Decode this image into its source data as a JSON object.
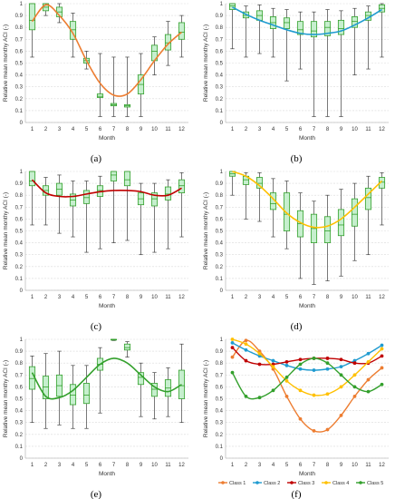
{
  "figure": {
    "panels": [
      {
        "id": "a",
        "label": "(a)",
        "type": "box",
        "xlabel": "Month",
        "ylabel": "Relative mean monthy ACI (-)",
        "ylim": [
          0,
          1
        ],
        "yticks": [
          0,
          0.1,
          0.2,
          0.3,
          0.4,
          0.5,
          0.6,
          0.7,
          0.8,
          0.9,
          1
        ],
        "months": [
          1,
          2,
          3,
          4,
          5,
          6,
          7,
          8,
          9,
          10,
          11,
          12
        ],
        "boxes": [
          {
            "min": 0.55,
            "q1": 0.78,
            "med": 0.86,
            "q3": 1.0,
            "max": 1.0
          },
          {
            "min": 0.9,
            "q1": 0.94,
            "med": 0.97,
            "q3": 1.0,
            "max": 1.0
          },
          {
            "min": 0.84,
            "q1": 0.89,
            "med": 0.93,
            "q3": 0.97,
            "max": 1.0
          },
          {
            "min": 0.55,
            "q1": 0.7,
            "med": 0.78,
            "q3": 0.85,
            "max": 0.92
          },
          {
            "min": 0.45,
            "q1": 0.5,
            "med": 0.52,
            "q3": 0.54,
            "max": 0.6
          },
          {
            "min": 0.05,
            "q1": 0.21,
            "med": 0.22,
            "q3": 0.24,
            "max": 0.58
          },
          {
            "min": 0.05,
            "q1": 0.14,
            "med": 0.15,
            "q3": 0.16,
            "max": 0.55
          },
          {
            "min": 0.05,
            "q1": 0.13,
            "med": 0.14,
            "q3": 0.15,
            "max": 0.55
          },
          {
            "min": 0.05,
            "q1": 0.24,
            "med": 0.32,
            "q3": 0.4,
            "max": 0.58
          },
          {
            "min": 0.4,
            "q1": 0.52,
            "med": 0.6,
            "q3": 0.65,
            "max": 0.72
          },
          {
            "min": 0.48,
            "q1": 0.61,
            "med": 0.67,
            "q3": 0.74,
            "max": 0.85
          },
          {
            "min": 0.55,
            "q1": 0.7,
            "med": 0.76,
            "q3": 0.84,
            "max": 0.9
          }
        ],
        "fit": [
          0.85,
          0.99,
          0.9,
          0.75,
          0.52,
          0.33,
          0.23,
          0.24,
          0.36,
          0.52,
          0.66,
          0.76
        ],
        "fit_color": "#ed7d31"
      },
      {
        "id": "b",
        "label": "(b)",
        "type": "box",
        "xlabel": "Month",
        "ylabel": "Relative mean monthy ACI (-)",
        "ylim": [
          0,
          1
        ],
        "yticks": [
          0,
          0.1,
          0.2,
          0.3,
          0.4,
          0.5,
          0.6,
          0.7,
          0.8,
          0.9,
          1
        ],
        "months": [
          1,
          2,
          3,
          4,
          5,
          6,
          7,
          8,
          9,
          10,
          11,
          12
        ],
        "boxes": [
          {
            "min": 0.62,
            "q1": 0.95,
            "med": 0.98,
            "q3": 1.0,
            "max": 1.0
          },
          {
            "min": 0.55,
            "q1": 0.88,
            "med": 0.9,
            "q3": 0.93,
            "max": 0.98
          },
          {
            "min": 0.58,
            "q1": 0.86,
            "med": 0.9,
            "q3": 0.94,
            "max": 0.99
          },
          {
            "min": 0.55,
            "q1": 0.79,
            "med": 0.84,
            "q3": 0.89,
            "max": 0.96
          },
          {
            "min": 0.35,
            "q1": 0.79,
            "med": 0.84,
            "q3": 0.88,
            "max": 0.95
          },
          {
            "min": 0.45,
            "q1": 0.74,
            "med": 0.78,
            "q3": 0.85,
            "max": 0.93
          },
          {
            "min": 0.05,
            "q1": 0.72,
            "med": 0.77,
            "q3": 0.85,
            "max": 0.93
          },
          {
            "min": 0.05,
            "q1": 0.73,
            "med": 0.8,
            "q3": 0.85,
            "max": 0.95
          },
          {
            "min": 0.05,
            "q1": 0.74,
            "med": 0.79,
            "q3": 0.86,
            "max": 0.94
          },
          {
            "min": 0.4,
            "q1": 0.8,
            "med": 0.85,
            "q3": 0.89,
            "max": 0.96
          },
          {
            "min": 0.45,
            "q1": 0.86,
            "med": 0.9,
            "q3": 0.93,
            "max": 0.98
          },
          {
            "min": 0.55,
            "q1": 0.93,
            "med": 0.96,
            "q3": 0.99,
            "max": 1.0
          }
        ],
        "fit": [
          0.97,
          0.91,
          0.86,
          0.82,
          0.78,
          0.75,
          0.74,
          0.75,
          0.77,
          0.82,
          0.88,
          0.95
        ],
        "fit_color": "#1f9bd0"
      },
      {
        "id": "c",
        "label": "(c)",
        "type": "box",
        "xlabel": "Month",
        "ylabel": "Relative mean monthy ACI (-)",
        "ylim": [
          0,
          1
        ],
        "yticks": [
          0,
          0.1,
          0.2,
          0.3,
          0.4,
          0.5,
          0.6,
          0.7,
          0.8,
          0.9,
          1
        ],
        "months": [
          1,
          2,
          3,
          4,
          5,
          6,
          7,
          8,
          9,
          10,
          11,
          12
        ],
        "boxes": [
          {
            "min": 0.55,
            "q1": 0.88,
            "med": 0.92,
            "q3": 1.0,
            "max": 1.0
          },
          {
            "min": 0.55,
            "q1": 0.8,
            "med": 0.84,
            "q3": 0.88,
            "max": 0.95
          },
          {
            "min": 0.48,
            "q1": 0.8,
            "med": 0.85,
            "q3": 0.9,
            "max": 0.97
          },
          {
            "min": 0.45,
            "q1": 0.71,
            "med": 0.76,
            "q3": 0.81,
            "max": 0.92
          },
          {
            "min": 0.32,
            "q1": 0.73,
            "med": 0.78,
            "q3": 0.84,
            "max": 0.92
          },
          {
            "min": 0.35,
            "q1": 0.79,
            "med": 0.84,
            "q3": 0.88,
            "max": 0.96
          },
          {
            "min": 0.4,
            "q1": 0.92,
            "med": 0.97,
            "q3": 1.0,
            "max": 1.0
          },
          {
            "min": 0.42,
            "q1": 0.88,
            "med": 0.93,
            "q3": 1.0,
            "max": 1.0
          },
          {
            "min": 0.3,
            "q1": 0.72,
            "med": 0.77,
            "q3": 0.82,
            "max": 0.9
          },
          {
            "min": 0.32,
            "q1": 0.71,
            "med": 0.77,
            "q3": 0.82,
            "max": 0.9
          },
          {
            "min": 0.35,
            "q1": 0.76,
            "med": 0.81,
            "q3": 0.87,
            "max": 0.93
          },
          {
            "min": 0.45,
            "q1": 0.82,
            "med": 0.88,
            "q3": 0.93,
            "max": 0.99
          }
        ],
        "fit": [
          0.93,
          0.82,
          0.79,
          0.79,
          0.81,
          0.83,
          0.84,
          0.84,
          0.83,
          0.8,
          0.8,
          0.86
        ],
        "fit_color": "#c00000"
      },
      {
        "id": "d",
        "label": "(d)",
        "type": "box",
        "xlabel": "Month",
        "ylabel": "Relative mean monthy ACI (-)",
        "ylim": [
          0,
          1
        ],
        "yticks": [
          0,
          0.1,
          0.2,
          0.3,
          0.4,
          0.5,
          0.6,
          0.7,
          0.8,
          0.9,
          1
        ],
        "months": [
          1,
          2,
          3,
          4,
          5,
          6,
          7,
          8,
          9,
          10,
          11,
          12
        ],
        "boxes": [
          {
            "min": 0.8,
            "q1": 0.96,
            "med": 0.98,
            "q3": 1.0,
            "max": 1.0
          },
          {
            "min": 0.6,
            "q1": 0.89,
            "med": 0.93,
            "q3": 0.96,
            "max": 0.99
          },
          {
            "min": 0.58,
            "q1": 0.86,
            "med": 0.9,
            "q3": 0.95,
            "max": 0.99
          },
          {
            "min": 0.45,
            "q1": 0.68,
            "med": 0.73,
            "q3": 0.82,
            "max": 0.94
          },
          {
            "min": 0.35,
            "q1": 0.5,
            "med": 0.64,
            "q3": 0.82,
            "max": 0.92
          },
          {
            "min": 0.1,
            "q1": 0.45,
            "med": 0.56,
            "q3": 0.67,
            "max": 0.82
          },
          {
            "min": 0.05,
            "q1": 0.4,
            "med": 0.52,
            "q3": 0.64,
            "max": 0.75
          },
          {
            "min": 0.08,
            "q1": 0.4,
            "med": 0.5,
            "q3": 0.62,
            "max": 0.8
          },
          {
            "min": 0.12,
            "q1": 0.46,
            "med": 0.55,
            "q3": 0.68,
            "max": 0.85
          },
          {
            "min": 0.25,
            "q1": 0.54,
            "med": 0.64,
            "q3": 0.77,
            "max": 0.9
          },
          {
            "min": 0.3,
            "q1": 0.68,
            "med": 0.78,
            "q3": 0.86,
            "max": 0.96
          },
          {
            "min": 0.55,
            "q1": 0.86,
            "med": 0.91,
            "q3": 0.95,
            "max": 0.99
          }
        ],
        "fit": [
          1.0,
          0.96,
          0.88,
          0.77,
          0.65,
          0.57,
          0.53,
          0.54,
          0.6,
          0.7,
          0.81,
          0.92
        ],
        "fit_color": "#ffc000"
      },
      {
        "id": "e",
        "label": "(e)",
        "type": "box",
        "xlabel": "Month",
        "ylabel": "Relative mean monthy ACI (-)",
        "ylim": [
          0,
          1
        ],
        "yticks": [
          0,
          0.1,
          0.2,
          0.3,
          0.4,
          0.5,
          0.6,
          0.7,
          0.8,
          0.9,
          1
        ],
        "months": [
          1,
          2,
          3,
          4,
          5,
          6,
          7,
          8,
          9,
          10,
          11,
          12
        ],
        "boxes": [
          {
            "min": 0.3,
            "q1": 0.58,
            "med": 0.67,
            "q3": 0.77,
            "max": 0.86
          },
          {
            "min": 0.25,
            "q1": 0.5,
            "med": 0.6,
            "q3": 0.69,
            "max": 0.88
          },
          {
            "min": 0.28,
            "q1": 0.52,
            "med": 0.61,
            "q3": 0.7,
            "max": 0.9
          },
          {
            "min": 0.25,
            "q1": 0.45,
            "med": 0.53,
            "q3": 0.62,
            "max": 0.78
          },
          {
            "min": 0.25,
            "q1": 0.46,
            "med": 0.53,
            "q3": 0.63,
            "max": 0.78
          },
          {
            "min": 0.38,
            "q1": 0.74,
            "med": 0.79,
            "q3": 0.84,
            "max": 0.93
          },
          {
            "min": 0.99,
            "q1": 0.995,
            "med": 0.998,
            "q3": 1.0,
            "max": 1.0
          },
          {
            "min": 0.85,
            "q1": 0.91,
            "med": 0.93,
            "q3": 0.96,
            "max": 0.98
          },
          {
            "min": 0.35,
            "q1": 0.62,
            "med": 0.68,
            "q3": 0.72,
            "max": 0.8
          },
          {
            "min": 0.33,
            "q1": 0.52,
            "med": 0.58,
            "q3": 0.63,
            "max": 0.72
          },
          {
            "min": 0.35,
            "q1": 0.52,
            "med": 0.59,
            "q3": 0.66,
            "max": 0.76
          },
          {
            "min": 0.3,
            "q1": 0.5,
            "med": 0.61,
            "q3": 0.74,
            "max": 0.96
          }
        ],
        "fit": [
          0.72,
          0.52,
          0.51,
          0.57,
          0.68,
          0.79,
          0.84,
          0.8,
          0.7,
          0.6,
          0.56,
          0.62
        ],
        "fit_color": "#33a02c"
      },
      {
        "id": "f",
        "label": "(f)",
        "type": "line",
        "xlabel": "Month",
        "ylabel": "Relative mean monthy ACI (-)",
        "ylim": [
          0,
          1
        ],
        "yticks": [
          0,
          0.1,
          0.2,
          0.3,
          0.4,
          0.5,
          0.6,
          0.7,
          0.8,
          0.9,
          1
        ],
        "months": [
          1,
          2,
          3,
          4,
          5,
          6,
          7,
          8,
          9,
          10,
          11,
          12
        ],
        "series": [
          {
            "name": "Class 1",
            "color": "#ed7d31",
            "values": [
              0.85,
              0.99,
              0.9,
              0.75,
              0.52,
              0.33,
              0.23,
              0.24,
              0.36,
              0.52,
              0.66,
              0.76
            ]
          },
          {
            "name": "Class 2",
            "color": "#1f9bd0",
            "values": [
              0.97,
              0.91,
              0.86,
              0.82,
              0.78,
              0.75,
              0.74,
              0.75,
              0.77,
              0.82,
              0.88,
              0.95
            ]
          },
          {
            "name": "Class 3",
            "color": "#c00000",
            "values": [
              0.93,
              0.82,
              0.79,
              0.79,
              0.81,
              0.83,
              0.84,
              0.84,
              0.83,
              0.8,
              0.8,
              0.86
            ]
          },
          {
            "name": "Class 4",
            "color": "#ffc000",
            "values": [
              1.0,
              0.96,
              0.88,
              0.77,
              0.65,
              0.57,
              0.53,
              0.54,
              0.6,
              0.7,
              0.81,
              0.92
            ]
          },
          {
            "name": "Class 5",
            "color": "#33a02c",
            "values": [
              0.72,
              0.52,
              0.51,
              0.57,
              0.68,
              0.79,
              0.84,
              0.8,
              0.7,
              0.6,
              0.56,
              0.62
            ]
          }
        ]
      }
    ],
    "colors": {
      "box_fill": "#c6efce",
      "box_stroke": "#33a02c",
      "whisker": "#404040",
      "grid": "#d9d9d9",
      "axis": "#bfbfbf"
    }
  }
}
